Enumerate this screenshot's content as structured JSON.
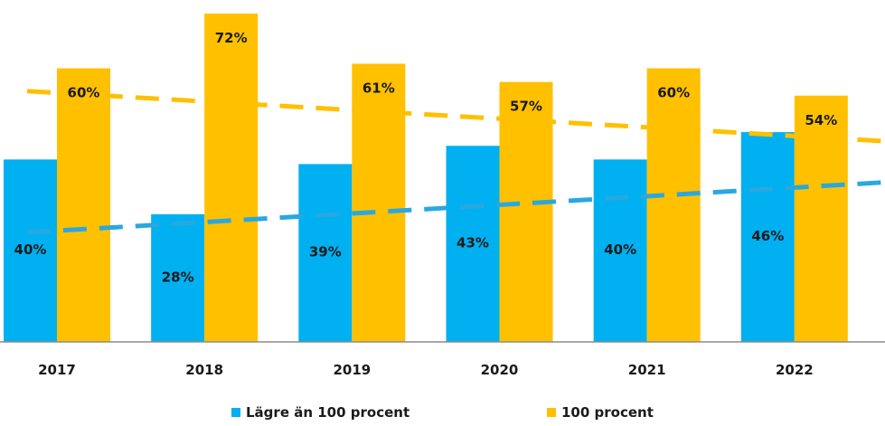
{
  "chart_data": {
    "type": "bar",
    "categories": [
      "2017",
      "2018",
      "2019",
      "2020",
      "2021",
      "2022"
    ],
    "series": [
      {
        "name": "Lägre än 100 procent",
        "values": [
          40,
          28,
          39,
          43,
          40,
          46
        ],
        "labels": [
          "40%",
          "28%",
          "39%",
          "43%",
          "40%",
          "46%"
        ],
        "color": "#00b0f0",
        "trendline": {
          "style": "dashed",
          "color": "#29a8e0",
          "start": 24,
          "end": 35
        }
      },
      {
        "name": "100 procent",
        "values": [
          60,
          72,
          61,
          57,
          60,
          54
        ],
        "labels": [
          "60%",
          "72%",
          "61%",
          "57%",
          "60%",
          "54%"
        ],
        "color": "#ffc000",
        "trendline": {
          "style": "dashed",
          "color": "#ffc000",
          "start": 55,
          "end": 44
        }
      }
    ],
    "ylim": [
      0,
      75
    ],
    "title": "",
    "xlabel": "",
    "ylabel": "",
    "grid": false,
    "legend_position": "bottom"
  }
}
